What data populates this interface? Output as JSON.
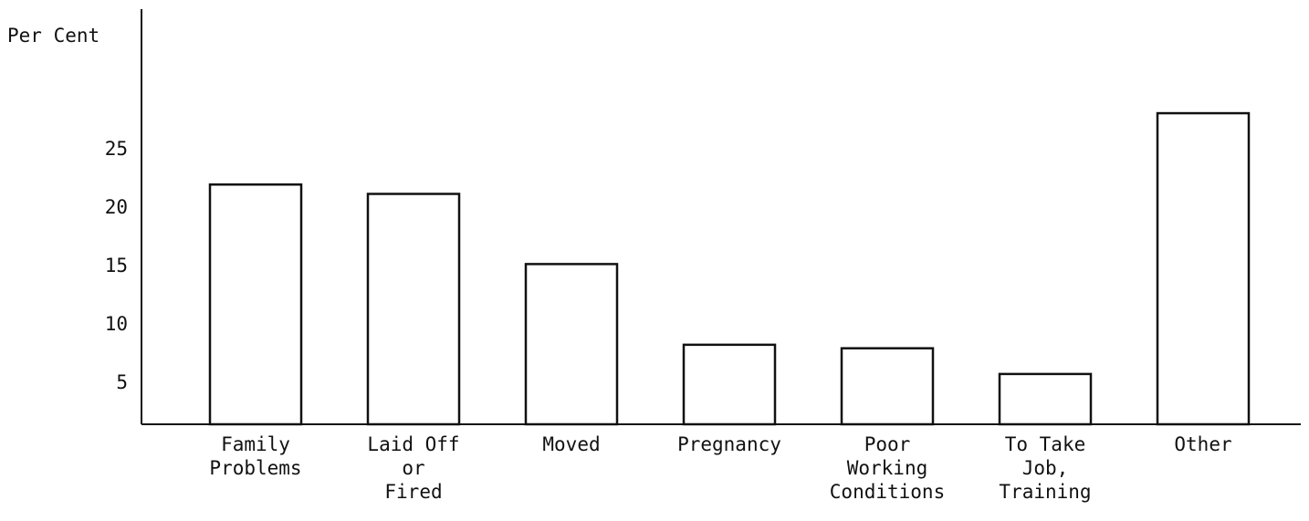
{
  "chart_data": {
    "type": "bar",
    "y_axis_label": "Per Cent",
    "categories": [
      [
        "Family",
        "Problems"
      ],
      [
        "Laid Off",
        "or",
        "Fired"
      ],
      [
        "Moved"
      ],
      [
        "Pregnancy"
      ],
      [
        "Poor",
        "Working",
        "Conditions"
      ],
      [
        "To Take",
        "Job,",
        "Training"
      ],
      [
        "Other"
      ]
    ],
    "values": [
      22.0,
      21.2,
      15.2,
      8.3,
      8.0,
      5.8,
      28.1
    ],
    "color": "#ffffff",
    "ylim": [
      1.5,
      37
    ],
    "yticks": [
      5,
      10,
      15,
      20,
      25
    ],
    "grid": false
  }
}
